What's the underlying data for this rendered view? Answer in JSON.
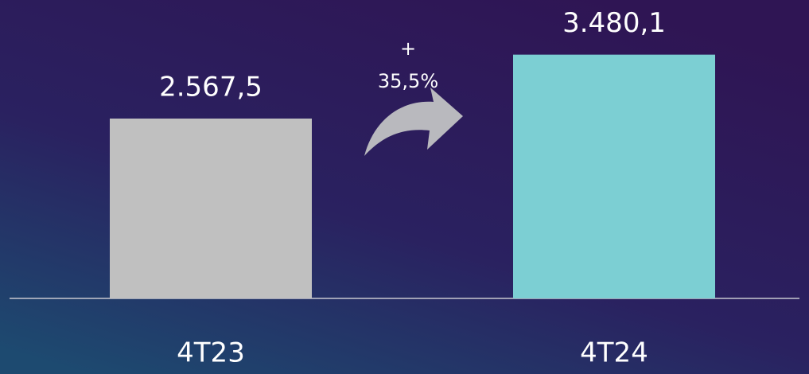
{
  "chart_data": {
    "type": "bar",
    "categories": [
      "4T23",
      "4T24"
    ],
    "values": [
      2567.5,
      3480.1
    ],
    "value_labels": [
      "2.567,5",
      "3.480,1"
    ],
    "colors": [
      "#c0c0c0",
      "#7ccfd3"
    ],
    "ylim": [
      0,
      4260
    ],
    "annotation": [
      "+",
      "35,5%"
    ]
  }
}
